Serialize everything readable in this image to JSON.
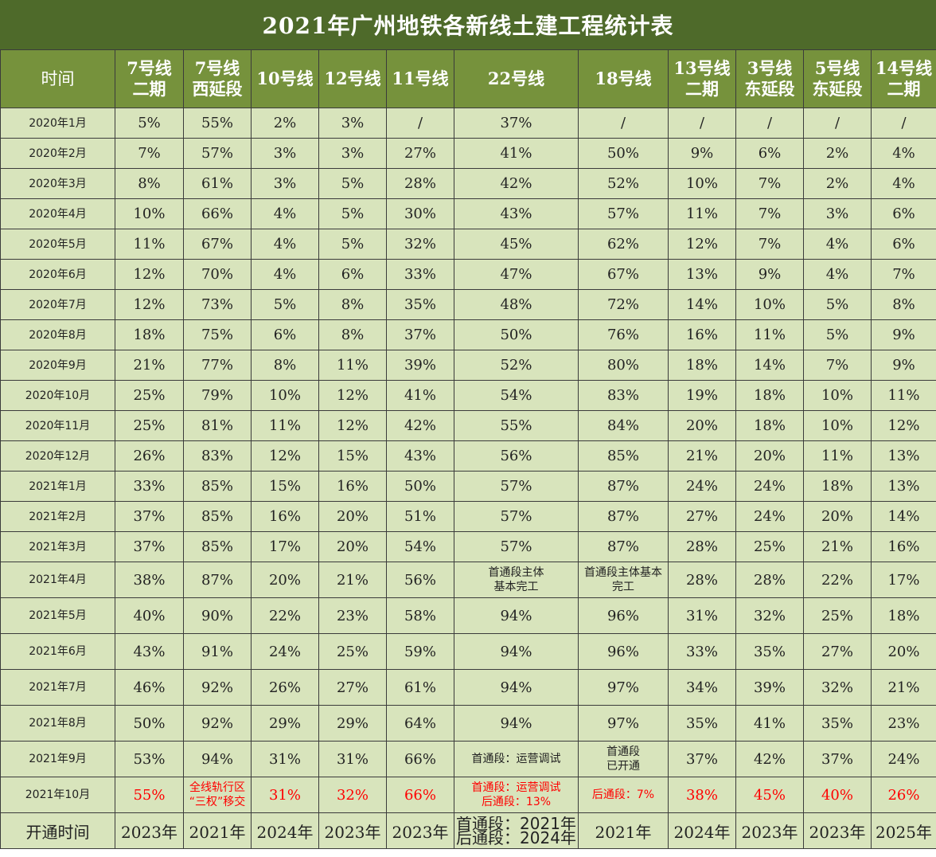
{
  "title": "2021年广州地铁各新线土建工程统计表",
  "colors": {
    "title_bg": "#4e6a2a",
    "header_bg": "#76923c",
    "cell_bg": "#d8e4bc",
    "highlight": "#ff0000"
  },
  "columns": [
    [
      "时间"
    ],
    [
      "7号线",
      "二期"
    ],
    [
      "7号线",
      "西延段"
    ],
    [
      "10号线"
    ],
    [
      "12号线"
    ],
    [
      "11号线"
    ],
    [
      "22号线"
    ],
    [
      "18号线"
    ],
    [
      "13号线",
      "二期"
    ],
    [
      "3号线",
      "东延段"
    ],
    [
      "5号线",
      "东延段"
    ],
    [
      "14号线",
      "二期"
    ]
  ],
  "rows": [
    [
      "2020年1月",
      "5%",
      "55%",
      "2%",
      "3%",
      "/",
      "37%",
      "/",
      "/",
      "/",
      "/",
      "/"
    ],
    [
      "2020年2月",
      "7%",
      "57%",
      "3%",
      "3%",
      "27%",
      "41%",
      "50%",
      "9%",
      "6%",
      "2%",
      "4%"
    ],
    [
      "2020年3月",
      "8%",
      "61%",
      "3%",
      "5%",
      "28%",
      "42%",
      "52%",
      "10%",
      "7%",
      "2%",
      "4%"
    ],
    [
      "2020年4月",
      "10%",
      "66%",
      "4%",
      "5%",
      "30%",
      "43%",
      "57%",
      "11%",
      "7%",
      "3%",
      "6%"
    ],
    [
      "2020年5月",
      "11%",
      "67%",
      "4%",
      "5%",
      "32%",
      "45%",
      "62%",
      "12%",
      "7%",
      "4%",
      "6%"
    ],
    [
      "2020年6月",
      "12%",
      "70%",
      "4%",
      "6%",
      "33%",
      "47%",
      "67%",
      "13%",
      "9%",
      "4%",
      "7%"
    ],
    [
      "2020年7月",
      "12%",
      "73%",
      "5%",
      "8%",
      "35%",
      "48%",
      "72%",
      "14%",
      "10%",
      "5%",
      "8%"
    ],
    [
      "2020年8月",
      "18%",
      "75%",
      "6%",
      "8%",
      "37%",
      "50%",
      "76%",
      "16%",
      "11%",
      "5%",
      "9%"
    ],
    [
      "2020年9月",
      "21%",
      "77%",
      "8%",
      "11%",
      "39%",
      "52%",
      "80%",
      "18%",
      "14%",
      "7%",
      "9%"
    ],
    [
      "2020年10月",
      "25%",
      "79%",
      "10%",
      "12%",
      "41%",
      "54%",
      "83%",
      "19%",
      "18%",
      "10%",
      "11%"
    ],
    [
      "2020年11月",
      "25%",
      "81%",
      "11%",
      "12%",
      "42%",
      "55%",
      "84%",
      "20%",
      "18%",
      "10%",
      "12%"
    ],
    [
      "2020年12月",
      "26%",
      "83%",
      "12%",
      "15%",
      "43%",
      "56%",
      "85%",
      "21%",
      "20%",
      "11%",
      "13%"
    ],
    [
      "2021年1月",
      "33%",
      "85%",
      "15%",
      "16%",
      "50%",
      "57%",
      "87%",
      "24%",
      "24%",
      "18%",
      "13%"
    ],
    [
      "2021年2月",
      "37%",
      "85%",
      "16%",
      "20%",
      "51%",
      "57%",
      "87%",
      "27%",
      "24%",
      "20%",
      "14%"
    ],
    [
      "2021年3月",
      "37%",
      "85%",
      "17%",
      "20%",
      "54%",
      "57%",
      "87%",
      "28%",
      "25%",
      "21%",
      "16%"
    ],
    [
      "2021年4月",
      "38%",
      "87%",
      "20%",
      "21%",
      "56%",
      "首通段主体\n基本完工",
      "首通段主体基本\n完工",
      "28%",
      "28%",
      "22%",
      "17%"
    ],
    [
      "2021年5月",
      "40%",
      "90%",
      "22%",
      "23%",
      "58%",
      "94%",
      "96%",
      "31%",
      "32%",
      "25%",
      "18%"
    ],
    [
      "2021年6月",
      "43%",
      "91%",
      "24%",
      "25%",
      "59%",
      "94%",
      "96%",
      "33%",
      "35%",
      "27%",
      "20%"
    ],
    [
      "2021年7月",
      "46%",
      "92%",
      "26%",
      "27%",
      "61%",
      "94%",
      "97%",
      "34%",
      "39%",
      "32%",
      "21%"
    ],
    [
      "2021年8月",
      "50%",
      "92%",
      "29%",
      "29%",
      "64%",
      "94%",
      "97%",
      "35%",
      "41%",
      "35%",
      "23%"
    ],
    [
      "2021年9月",
      "53%",
      "94%",
      "31%",
      "31%",
      "66%",
      "首通段：运营调试",
      "首通段\n已开通",
      "37%",
      "42%",
      "37%",
      "24%"
    ],
    [
      "2021年10月",
      "55%",
      "全线轨行区\n“三权”移交",
      "31%",
      "32%",
      "66%",
      "首通段：运营调试\n后通段：13%",
      "后通段：7%",
      "38%",
      "45%",
      "40%",
      "26%"
    ],
    [
      "开通时间",
      "2023年",
      "2021年",
      "2024年",
      "2023年",
      "2023年",
      "首通段：2021年\n后通段：2024年",
      "2021年",
      "2024年",
      "2023年",
      "2023年",
      "2025年"
    ]
  ]
}
